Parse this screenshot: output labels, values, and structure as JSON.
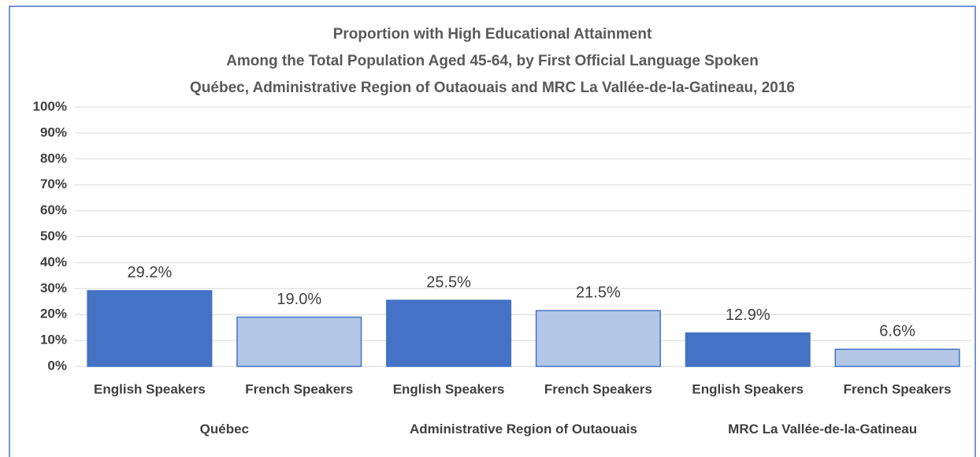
{
  "chart_data": {
    "type": "bar",
    "title_lines": [
      "Proportion with High Educational Attainment",
      "Among the Total Population Aged 45-64, by First Official Language Spoken",
      "Québec, Administrative Region of Outaouais and MRC La Vallée-de-la-Gatineau, 2016"
    ],
    "categories": [
      "Québec",
      "Administrative Region of Outaouais",
      "MRC La Vallée-de-la-Gatineau"
    ],
    "series": [
      {
        "name": "English Speakers",
        "color": "#4472c4",
        "values": [
          29.2,
          25.5,
          12.9
        ],
        "value_labels": [
          "29.2%",
          "25.5%",
          "12.9%"
        ]
      },
      {
        "name": "French Speakers",
        "color": "#b4c7e7",
        "values": [
          19.0,
          21.5,
          6.6
        ],
        "value_labels": [
          "19.0%",
          "21.5%",
          "6.6%"
        ]
      }
    ],
    "ylim": [
      0,
      100
    ],
    "yticks": [
      {
        "value": 0,
        "label": "0%"
      },
      {
        "value": 10,
        "label": "10%"
      },
      {
        "value": 20,
        "label": "20%"
      },
      {
        "value": 30,
        "label": "30%"
      },
      {
        "value": 40,
        "label": "40%"
      },
      {
        "value": 50,
        "label": "50%"
      },
      {
        "value": 60,
        "label": "60%"
      },
      {
        "value": 70,
        "label": "70%"
      },
      {
        "value": 80,
        "label": "80%"
      },
      {
        "value": 90,
        "label": "90%"
      },
      {
        "value": 100,
        "label": "100%"
      }
    ],
    "grid": true
  }
}
